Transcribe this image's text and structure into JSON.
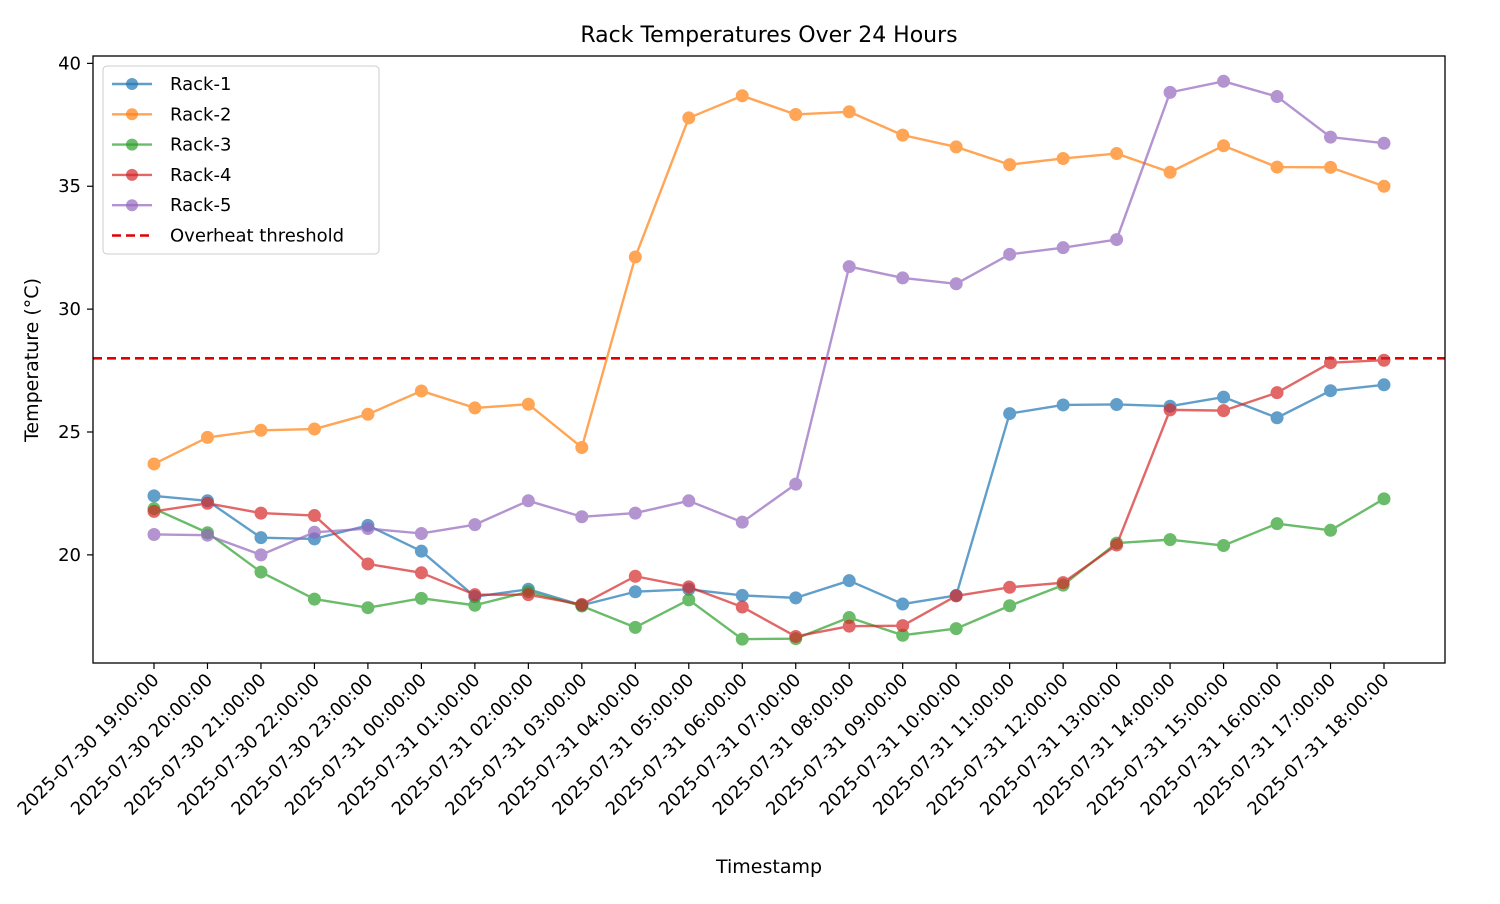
{
  "chart_data": {
    "type": "line",
    "title": "Rack Temperatures Over 24 Hours",
    "xlabel": "Timestamp",
    "ylabel": "Temperature (°C)",
    "ylim": [
      15.6,
      40.3
    ],
    "yticks": [
      20,
      25,
      30,
      35,
      40
    ],
    "grid": false,
    "legend_position": "top-left",
    "x": [
      "2025-07-30 19:00:00",
      "2025-07-30 20:00:00",
      "2025-07-30 21:00:00",
      "2025-07-30 22:00:00",
      "2025-07-30 23:00:00",
      "2025-07-31 00:00:00",
      "2025-07-31 01:00:00",
      "2025-07-31 02:00:00",
      "2025-07-31 03:00:00",
      "2025-07-31 04:00:00",
      "2025-07-31 05:00:00",
      "2025-07-31 06:00:00",
      "2025-07-31 07:00:00",
      "2025-07-31 08:00:00",
      "2025-07-31 09:00:00",
      "2025-07-31 10:00:00",
      "2025-07-31 11:00:00",
      "2025-07-31 12:00:00",
      "2025-07-31 13:00:00",
      "2025-07-31 14:00:00",
      "2025-07-31 15:00:00",
      "2025-07-31 16:00:00",
      "2025-07-31 17:00:00",
      "2025-07-31 18:00:00"
    ],
    "series": [
      {
        "name": "Rack-1",
        "color": "#1f77b4",
        "values": [
          22.4,
          22.2,
          20.7,
          20.65,
          21.2,
          20.15,
          18.3,
          18.6,
          17.95,
          18.5,
          18.6,
          18.35,
          18.25,
          18.95,
          18.0,
          18.35,
          25.75,
          26.1,
          26.12,
          26.05,
          26.42,
          25.58,
          26.68,
          26.92
        ]
      },
      {
        "name": "Rack-2",
        "color": "#ff7f0e",
        "values": [
          23.7,
          24.78,
          25.07,
          25.12,
          25.72,
          26.67,
          25.98,
          26.13,
          24.37,
          32.12,
          37.78,
          38.68,
          37.92,
          38.03,
          37.08,
          36.6,
          35.88,
          36.13,
          36.33,
          35.57,
          36.65,
          35.78,
          35.77,
          35.0
        ]
      },
      {
        "name": "Rack-3",
        "color": "#2ca02c",
        "values": [
          21.88,
          20.9,
          19.3,
          18.2,
          17.85,
          18.23,
          17.95,
          18.5,
          17.92,
          17.05,
          18.17,
          16.57,
          16.59,
          17.45,
          16.73,
          17.0,
          17.93,
          18.77,
          20.48,
          20.62,
          20.38,
          21.27,
          21.0,
          22.28
        ]
      },
      {
        "name": "Rack-4",
        "color": "#d62728",
        "values": [
          21.77,
          22.1,
          21.7,
          21.6,
          19.63,
          19.27,
          18.38,
          18.38,
          17.98,
          19.13,
          18.7,
          17.88,
          16.68,
          17.1,
          17.12,
          18.33,
          18.68,
          18.87,
          20.4,
          25.9,
          25.87,
          26.6,
          27.82,
          27.92
        ]
      },
      {
        "name": "Rack-5",
        "color": "#9467bd",
        "values": [
          20.83,
          20.8,
          20.0,
          20.92,
          21.07,
          20.87,
          21.23,
          22.2,
          21.55,
          21.7,
          22.2,
          21.33,
          22.88,
          31.73,
          31.27,
          31.03,
          32.23,
          32.5,
          32.83,
          38.82,
          39.27,
          38.65,
          37.0,
          36.75
        ]
      }
    ],
    "threshold": {
      "name": "Overheat threshold",
      "value": 28,
      "color": "#e00000",
      "style": "dashed"
    }
  }
}
